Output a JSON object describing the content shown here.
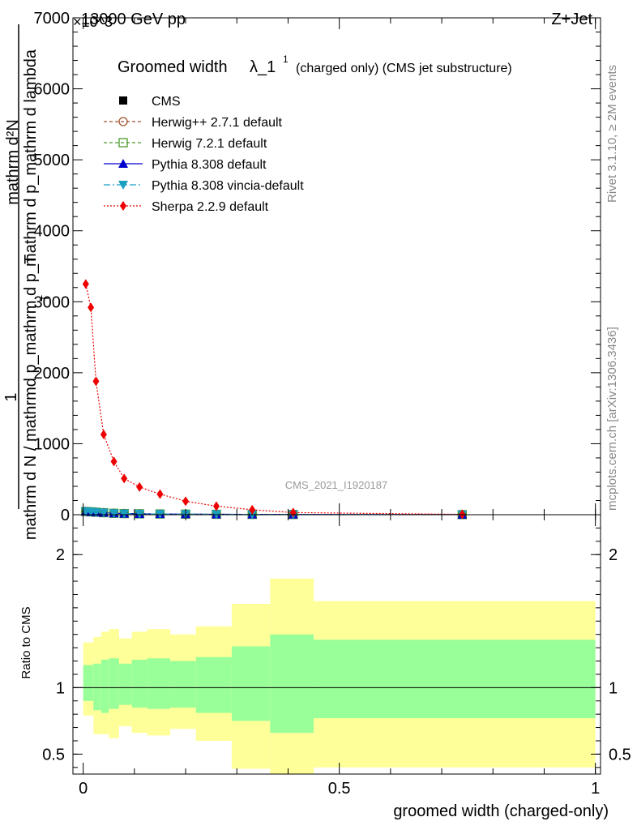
{
  "header": {
    "left": "13000 GeV pp",
    "right": "Z+Jet",
    "exponent": "×10^3"
  },
  "side_labels": {
    "rivet": "Rivet 3.1.10, ≥ 2M events",
    "mcplots": "mcplots.cern.ch [arXiv:1306.3436]"
  },
  "chart_data": [
    {
      "type": "line",
      "title_main": "Groomed width",
      "title_lambda": "λ_1",
      "title_sup": "1",
      "title_rest": "(charged only) (CMS jet substructure)",
      "ylabel_numerator": "mathrm d²N",
      "ylabel_numerator_line2": "mathrm d p_mathrm d lambda",
      "ylabel_frac_num": "1",
      "ylabel_denominator": "mathrm d N / mathrmd p_mathrm d p_T",
      "ylabel_denominator_sub": "T",
      "analysis_id": "CMS_2021_I1920187",
      "xlim": [
        -0.02,
        1.01
      ],
      "ylim": [
        0,
        7000
      ],
      "yticks": [
        {
          "v": 0,
          "label": "0"
        },
        {
          "v": 1000,
          "label": "1000"
        },
        {
          "v": 2000,
          "label": "2000"
        },
        {
          "v": 3000,
          "label": "3000"
        },
        {
          "v": 4000,
          "label": "4000"
        },
        {
          "v": 5000,
          "label": "5000"
        },
        {
          "v": 6000,
          "label": "6000"
        },
        {
          "v": 7000,
          "label": "7000"
        }
      ],
      "legend": [
        {
          "name": "CMS",
          "color": "#000000",
          "marker": "square-filled",
          "dash": ""
        },
        {
          "name": "Herwig++ 2.7.1 default",
          "color": "#a0522d",
          "marker": "circle-open",
          "dash": "4,3"
        },
        {
          "name": "Herwig 7.2.1 default",
          "color": "#4a9a2a",
          "marker": "square-open",
          "dash": "4,3"
        },
        {
          "name": "Pythia 8.308 default",
          "color": "#0000cc",
          "marker": "triangle-up",
          "dash": ""
        },
        {
          "name": "Pythia 8.308 vincia-default",
          "color": "#1a9fc0",
          "marker": "triangle-down",
          "dash": "8,3,2,3"
        },
        {
          "name": "Sherpa 2.2.9 default",
          "color": "#ee0000",
          "marker": "diamond",
          "dash": "2,2"
        }
      ],
      "x": [
        0.005,
        0.015,
        0.025,
        0.04,
        0.06,
        0.08,
        0.11,
        0.15,
        0.2,
        0.26,
        0.33,
        0.41,
        0.74
      ],
      "series": [
        {
          "name": "CMS",
          "values": [
            45,
            40,
            35,
            28,
            20,
            16,
            12,
            10,
            8,
            6,
            4,
            3,
            1
          ]
        },
        {
          "name": "Herwig++ 2.7.1 default",
          "values": [
            45,
            40,
            35,
            28,
            20,
            16,
            12,
            10,
            8,
            6,
            4,
            3,
            1
          ]
        },
        {
          "name": "Herwig 7.2.1 default",
          "values": [
            45,
            40,
            35,
            28,
            20,
            16,
            12,
            10,
            8,
            6,
            4,
            3,
            1
          ]
        },
        {
          "name": "Pythia 8.308 default",
          "values": [
            45,
            40,
            35,
            28,
            20,
            16,
            12,
            10,
            8,
            6,
            4,
            3,
            1
          ]
        },
        {
          "name": "Pythia 8.308 vincia-default",
          "values": [
            45,
            40,
            35,
            28,
            20,
            16,
            12,
            10,
            8,
            6,
            4,
            3,
            1
          ]
        },
        {
          "name": "Sherpa 2.2.9 default",
          "values": [
            3250,
            2920,
            1880,
            1130,
            750,
            510,
            390,
            290,
            190,
            120,
            70,
            30,
            5
          ]
        }
      ]
    },
    {
      "type": "area",
      "ylabel": "Ratio to CMS",
      "xlabel": "groomed width (charged-only)",
      "xlim": [
        -0.02,
        1.01
      ],
      "ylim": [
        0.35,
        2.3
      ],
      "yticks": [
        {
          "v": 0.5,
          "label": "0.5"
        },
        {
          "v": 1,
          "label": "1"
        },
        {
          "v": 2,
          "label": "2"
        }
      ],
      "xticks": [
        {
          "v": 0,
          "label": "0"
        },
        {
          "v": 0.5,
          "label": "0.5"
        },
        {
          "v": 1,
          "label": "1"
        }
      ],
      "bins": [
        {
          "x0": 0.0,
          "x1": 0.02,
          "g_lo": 0.9,
          "g_hi": 1.17,
          "y_lo": 0.79,
          "y_hi": 1.34
        },
        {
          "x0": 0.02,
          "x1": 0.035,
          "g_lo": 0.83,
          "g_hi": 1.18,
          "y_lo": 0.65,
          "y_hi": 1.38
        },
        {
          "x0": 0.035,
          "x1": 0.05,
          "g_lo": 0.81,
          "g_hi": 1.21,
          "y_lo": 0.65,
          "y_hi": 1.42
        },
        {
          "x0": 0.05,
          "x1": 0.07,
          "g_lo": 0.84,
          "g_hi": 1.22,
          "y_lo": 0.62,
          "y_hi": 1.44
        },
        {
          "x0": 0.07,
          "x1": 0.095,
          "g_lo": 0.87,
          "g_hi": 1.18,
          "y_lo": 0.71,
          "y_hi": 1.37
        },
        {
          "x0": 0.095,
          "x1": 0.125,
          "g_lo": 0.85,
          "g_hi": 1.21,
          "y_lo": 0.66,
          "y_hi": 1.42
        },
        {
          "x0": 0.125,
          "x1": 0.17,
          "g_lo": 0.84,
          "g_hi": 1.22,
          "y_lo": 0.64,
          "y_hi": 1.44
        },
        {
          "x0": 0.17,
          "x1": 0.22,
          "g_lo": 0.85,
          "g_hi": 1.2,
          "y_lo": 0.69,
          "y_hi": 1.4
        },
        {
          "x0": 0.22,
          "x1": 0.29,
          "g_lo": 0.81,
          "g_hi": 1.23,
          "y_lo": 0.6,
          "y_hi": 1.46
        },
        {
          "x0": 0.29,
          "x1": 0.365,
          "g_lo": 0.75,
          "g_hi": 1.31,
          "y_lo": 0.39,
          "y_hi": 1.63
        },
        {
          "x0": 0.365,
          "x1": 0.45,
          "g_lo": 0.66,
          "g_hi": 1.4,
          "y_lo": 0.35,
          "y_hi": 1.82
        },
        {
          "x0": 0.45,
          "x1": 1.0,
          "g_lo": 0.77,
          "g_hi": 1.36,
          "y_lo": 0.4,
          "y_hi": 1.65
        }
      ],
      "ratio_line": 1,
      "band_colors": {
        "inner": "#99ff99",
        "outer": "#ffff99"
      }
    }
  ]
}
